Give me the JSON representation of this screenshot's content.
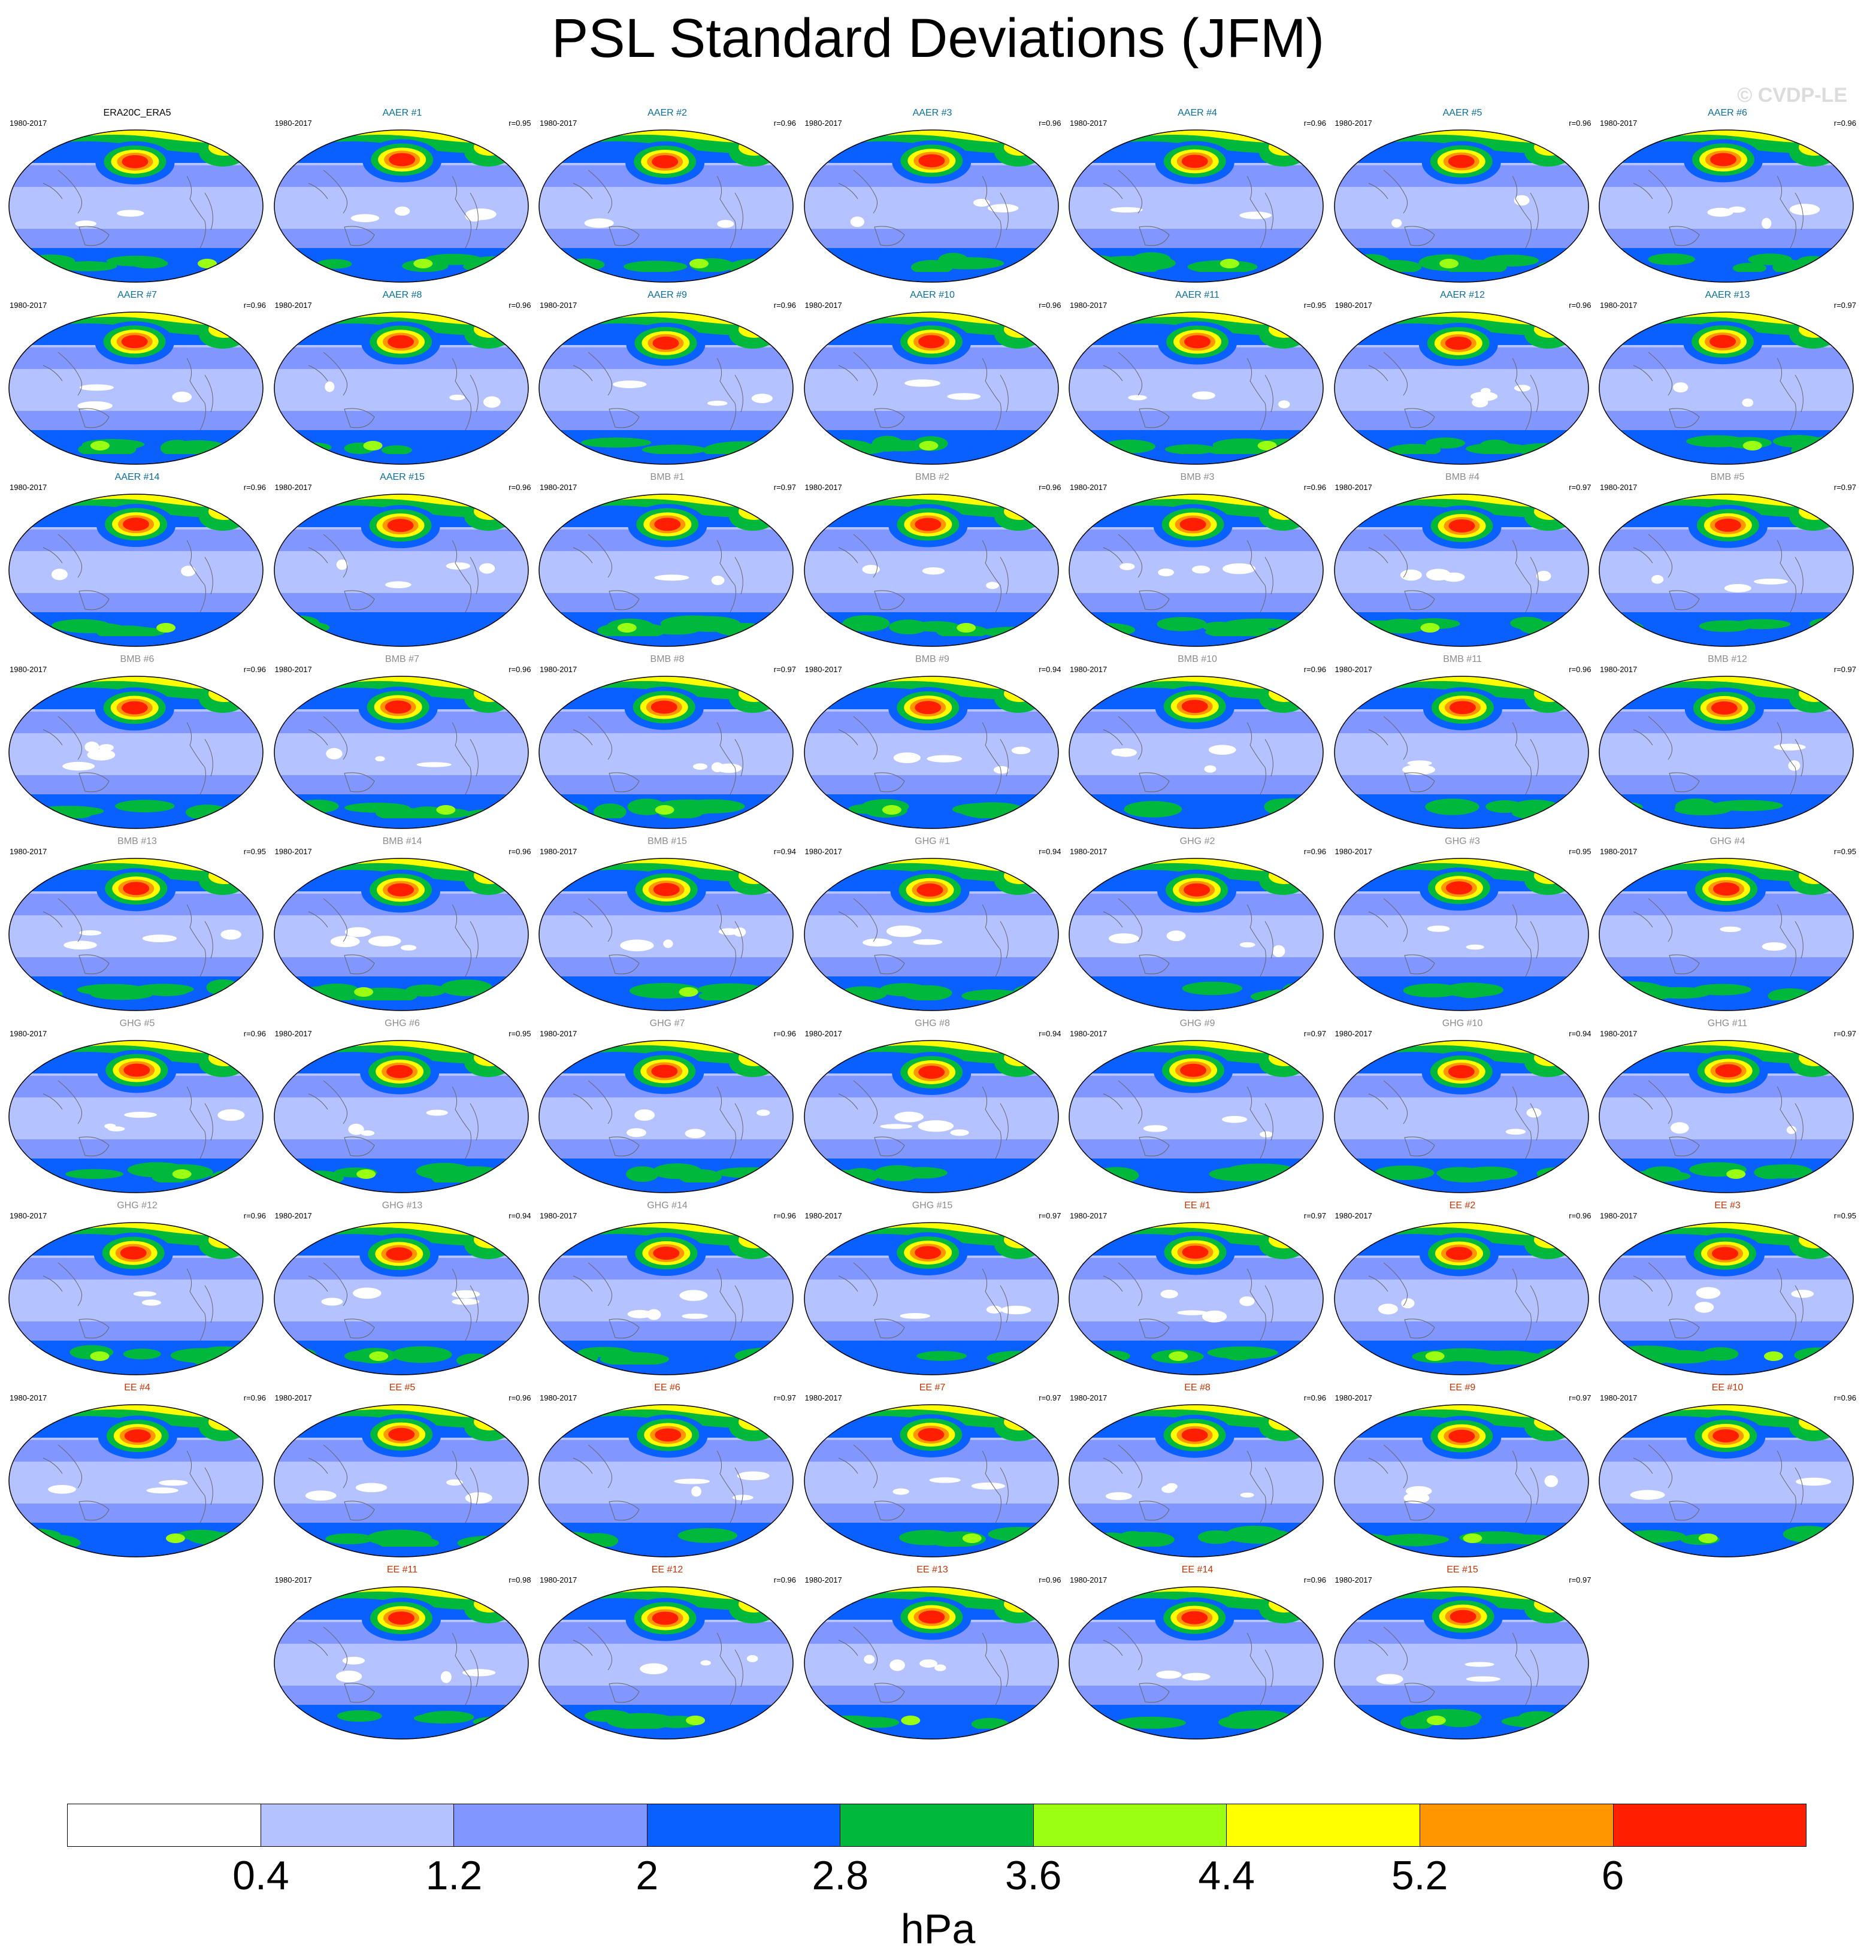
{
  "title": "PSL Standard Deviations (JFM)",
  "watermark": "© CVDP-LE",
  "colors": {
    "levels": [
      "#ffffff",
      "#b4c3ff",
      "#8296ff",
      "#0a5fff",
      "#00b93c",
      "#9bff14",
      "#ffff00",
      "#ff9600",
      "#ff1e00"
    ],
    "obs_label": "#000000",
    "AAER": "#0a6e9b",
    "BMB": "#8c8c8c",
    "GHG": "#8c8c8c",
    "EE": "#c83200",
    "coast": "#666666"
  },
  "colorbar": {
    "ticks": [
      "0.4",
      "1.2",
      "2",
      "2.8",
      "3.6",
      "4.4",
      "5.2",
      "6"
    ],
    "unit": "hPa"
  },
  "panels": [
    {
      "title": "ERA20C_ERA5",
      "period": "1980-2017",
      "r": "",
      "group": "obs"
    },
    {
      "title": "AAER #1",
      "period": "1980-2017",
      "r": "r=0.95",
      "group": "AAER"
    },
    {
      "title": "AAER #2",
      "period": "1980-2017",
      "r": "r=0.96",
      "group": "AAER"
    },
    {
      "title": "AAER #3",
      "period": "1980-2017",
      "r": "r=0.96",
      "group": "AAER"
    },
    {
      "title": "AAER #4",
      "period": "1980-2017",
      "r": "r=0.96",
      "group": "AAER"
    },
    {
      "title": "AAER #5",
      "period": "1980-2017",
      "r": "r=0.96",
      "group": "AAER"
    },
    {
      "title": "AAER #6",
      "period": "1980-2017",
      "r": "r=0.96",
      "group": "AAER"
    },
    {
      "title": "AAER #7",
      "period": "1980-2017",
      "r": "r=0.96",
      "group": "AAER"
    },
    {
      "title": "AAER #8",
      "period": "1980-2017",
      "r": "r=0.96",
      "group": "AAER"
    },
    {
      "title": "AAER #9",
      "period": "1980-2017",
      "r": "r=0.96",
      "group": "AAER"
    },
    {
      "title": "AAER #10",
      "period": "1980-2017",
      "r": "r=0.96",
      "group": "AAER"
    },
    {
      "title": "AAER #11",
      "period": "1980-2017",
      "r": "r=0.95",
      "group": "AAER"
    },
    {
      "title": "AAER #12",
      "period": "1980-2017",
      "r": "r=0.96",
      "group": "AAER"
    },
    {
      "title": "AAER #13",
      "period": "1980-2017",
      "r": "r=0.97",
      "group": "AAER"
    },
    {
      "title": "AAER #14",
      "period": "1980-2017",
      "r": "r=0.96",
      "group": "AAER"
    },
    {
      "title": "AAER #15",
      "period": "1980-2017",
      "r": "r=0.96",
      "group": "AAER"
    },
    {
      "title": "BMB #1",
      "period": "1980-2017",
      "r": "r=0.97",
      "group": "BMB"
    },
    {
      "title": "BMB #2",
      "period": "1980-2017",
      "r": "r=0.96",
      "group": "BMB"
    },
    {
      "title": "BMB #3",
      "period": "1980-2017",
      "r": "r=0.96",
      "group": "BMB"
    },
    {
      "title": "BMB #4",
      "period": "1980-2017",
      "r": "r=0.97",
      "group": "BMB"
    },
    {
      "title": "BMB #5",
      "period": "1980-2017",
      "r": "r=0.97",
      "group": "BMB"
    },
    {
      "title": "BMB #6",
      "period": "1980-2017",
      "r": "r=0.96",
      "group": "BMB"
    },
    {
      "title": "BMB #7",
      "period": "1980-2017",
      "r": "r=0.96",
      "group": "BMB"
    },
    {
      "title": "BMB #8",
      "period": "1980-2017",
      "r": "r=0.97",
      "group": "BMB"
    },
    {
      "title": "BMB #9",
      "period": "1980-2017",
      "r": "r=0.94",
      "group": "BMB"
    },
    {
      "title": "BMB #10",
      "period": "1980-2017",
      "r": "r=0.96",
      "group": "BMB"
    },
    {
      "title": "BMB #11",
      "period": "1980-2017",
      "r": "r=0.96",
      "group": "BMB"
    },
    {
      "title": "BMB #12",
      "period": "1980-2017",
      "r": "r=0.97",
      "group": "BMB"
    },
    {
      "title": "BMB #13",
      "period": "1980-2017",
      "r": "r=0.95",
      "group": "BMB"
    },
    {
      "title": "BMB #14",
      "period": "1980-2017",
      "r": "r=0.96",
      "group": "BMB"
    },
    {
      "title": "BMB #15",
      "period": "1980-2017",
      "r": "r=0.94",
      "group": "BMB"
    },
    {
      "title": "GHG #1",
      "period": "1980-2017",
      "r": "r=0.94",
      "group": "GHG"
    },
    {
      "title": "GHG #2",
      "period": "1980-2017",
      "r": "r=0.96",
      "group": "GHG"
    },
    {
      "title": "GHG #3",
      "period": "1980-2017",
      "r": "r=0.95",
      "group": "GHG"
    },
    {
      "title": "GHG #4",
      "period": "1980-2017",
      "r": "r=0.95",
      "group": "GHG"
    },
    {
      "title": "GHG #5",
      "period": "1980-2017",
      "r": "r=0.96",
      "group": "GHG"
    },
    {
      "title": "GHG #6",
      "period": "1980-2017",
      "r": "r=0.95",
      "group": "GHG"
    },
    {
      "title": "GHG #7",
      "period": "1980-2017",
      "r": "r=0.96",
      "group": "GHG"
    },
    {
      "title": "GHG #8",
      "period": "1980-2017",
      "r": "r=0.94",
      "group": "GHG"
    },
    {
      "title": "GHG #9",
      "period": "1980-2017",
      "r": "r=0.97",
      "group": "GHG"
    },
    {
      "title": "GHG #10",
      "period": "1980-2017",
      "r": "r=0.94",
      "group": "GHG"
    },
    {
      "title": "GHG #11",
      "period": "1980-2017",
      "r": "r=0.97",
      "group": "GHG"
    },
    {
      "title": "GHG #12",
      "period": "1980-2017",
      "r": "r=0.96",
      "group": "GHG"
    },
    {
      "title": "GHG #13",
      "period": "1980-2017",
      "r": "r=0.94",
      "group": "GHG"
    },
    {
      "title": "GHG #14",
      "period": "1980-2017",
      "r": "r=0.96",
      "group": "GHG"
    },
    {
      "title": "GHG #15",
      "period": "1980-2017",
      "r": "r=0.97",
      "group": "GHG"
    },
    {
      "title": "EE #1",
      "period": "1980-2017",
      "r": "r=0.97",
      "group": "EE"
    },
    {
      "title": "EE #2",
      "period": "1980-2017",
      "r": "r=0.96",
      "group": "EE"
    },
    {
      "title": "EE #3",
      "period": "1980-2017",
      "r": "r=0.95",
      "group": "EE"
    },
    {
      "title": "EE #4",
      "period": "1980-2017",
      "r": "r=0.96",
      "group": "EE"
    },
    {
      "title": "EE #5",
      "period": "1980-2017",
      "r": "r=0.96",
      "group": "EE"
    },
    {
      "title": "EE #6",
      "period": "1980-2017",
      "r": "r=0.97",
      "group": "EE"
    },
    {
      "title": "EE #7",
      "period": "1980-2017",
      "r": "r=0.97",
      "group": "EE"
    },
    {
      "title": "EE #8",
      "period": "1980-2017",
      "r": "r=0.96",
      "group": "EE"
    },
    {
      "title": "EE #9",
      "period": "1980-2017",
      "r": "r=0.97",
      "group": "EE"
    },
    {
      "title": "EE #10",
      "period": "1980-2017",
      "r": "r=0.96",
      "group": "EE"
    },
    {
      "title": "EE #11",
      "period": "1980-2017",
      "r": "r=0.98",
      "group": "EE"
    },
    {
      "title": "EE #12",
      "period": "1980-2017",
      "r": "r=0.96",
      "group": "EE"
    },
    {
      "title": "EE #13",
      "period": "1980-2017",
      "r": "r=0.96",
      "group": "EE"
    },
    {
      "title": "EE #14",
      "period": "1980-2017",
      "r": "r=0.96",
      "group": "EE"
    },
    {
      "title": "EE #15",
      "period": "1980-2017",
      "r": "r=0.97",
      "group": "EE"
    }
  ]
}
